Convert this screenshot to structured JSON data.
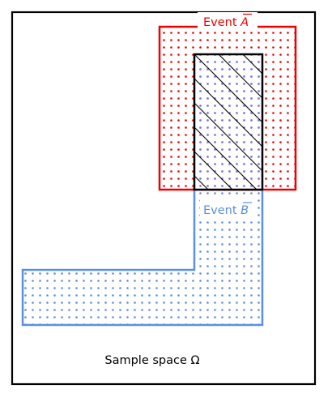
{
  "diagram": {
    "type": "venn-rectangles",
    "sample_space_label": "Sample space Ω",
    "event_a": {
      "label_prefix": "Event ",
      "label_letter": "A",
      "complement_bar": true,
      "color": "#ee0000",
      "fill_pattern": "dots"
    },
    "event_b": {
      "label_prefix": "Event ",
      "label_letter": "B",
      "complement_bar": true,
      "color": "#5b8fdf",
      "fill_pattern": "dots"
    },
    "intersection": {
      "border_color": "#000000",
      "fill_color": "#7f77d8",
      "fill_pattern": "dots-and-diagonal-hatch"
    },
    "frame_color": "#000000"
  }
}
